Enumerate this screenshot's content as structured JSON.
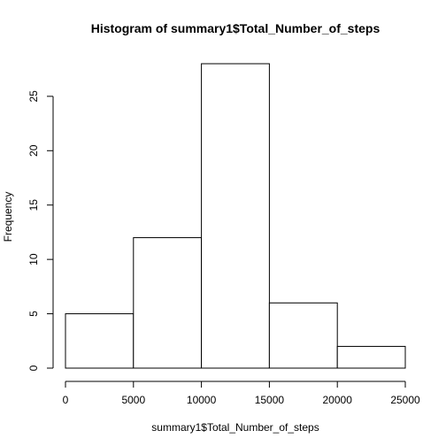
{
  "chart_data": {
    "type": "bar",
    "title": "Histogram of summary1$Total_Number_of_steps",
    "xlabel": "summary1$Total_Number_of_steps",
    "ylabel": "Frequency",
    "bins": [
      {
        "start": 0,
        "end": 5000,
        "count": 5
      },
      {
        "start": 5000,
        "end": 10000,
        "count": 12
      },
      {
        "start": 10000,
        "end": 15000,
        "count": 28
      },
      {
        "start": 15000,
        "end": 20000,
        "count": 6
      },
      {
        "start": 20000,
        "end": 25000,
        "count": 2
      }
    ],
    "x_ticks": [
      0,
      5000,
      10000,
      15000,
      20000,
      25000
    ],
    "x_tick_labels": [
      "0",
      "5000",
      "10000",
      "15000",
      "20000",
      "25000"
    ],
    "y_ticks": [
      0,
      5,
      10,
      15,
      20,
      25
    ],
    "y_tick_labels": [
      "0",
      "5",
      "10",
      "15",
      "20",
      "25"
    ],
    "xlim": [
      0,
      25000
    ],
    "ylim": [
      0,
      28
    ],
    "grid": false,
    "bar_fill": "#ffffff",
    "bar_stroke": "#000000"
  }
}
